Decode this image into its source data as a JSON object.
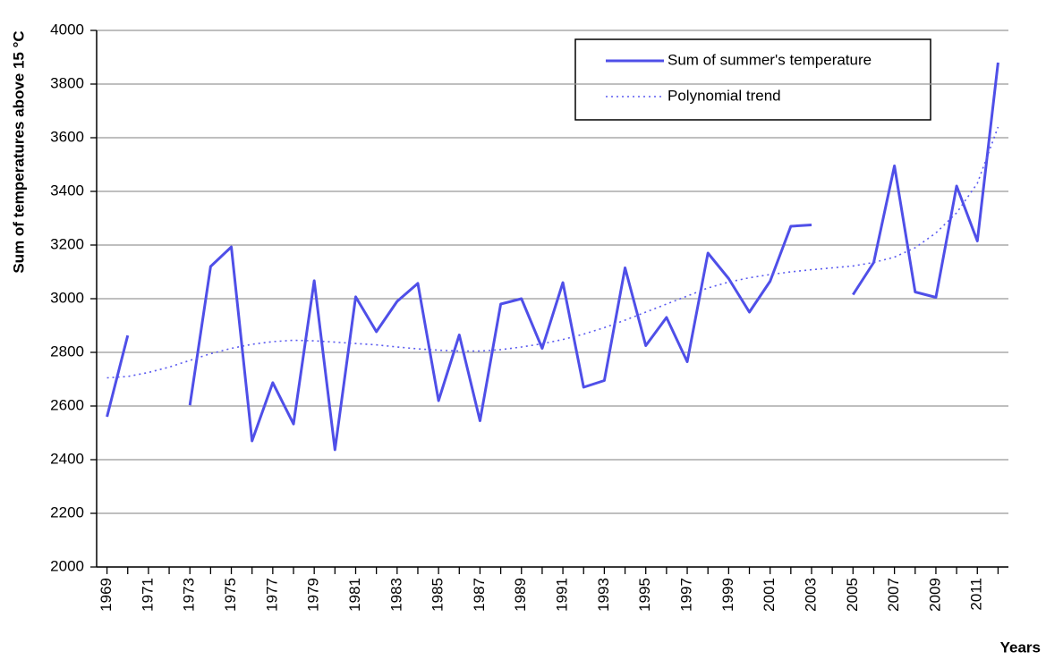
{
  "chart_data": {
    "type": "line",
    "y_label": "Sum of temperatures above 15 °C",
    "x_label": "Years",
    "x": [
      1969,
      1970,
      1971,
      1972,
      1973,
      1974,
      1975,
      1976,
      1977,
      1978,
      1979,
      1980,
      1981,
      1982,
      1983,
      1984,
      1985,
      1986,
      1987,
      1988,
      1989,
      1990,
      1991,
      1992,
      1993,
      1994,
      1995,
      1996,
      1997,
      1998,
      1999,
      2000,
      2001,
      2002,
      2003,
      2004,
      2005,
      2006,
      2007,
      2008,
      2009,
      2010,
      2011,
      2012
    ],
    "series": [
      {
        "name": "Sum of summer's temperature",
        "color": "#4f4fe8",
        "style": "solid",
        "values": [
          2560,
          2863,
          null,
          null,
          2603,
          3120,
          3193,
          2470,
          2687,
          2533,
          3067,
          2437,
          3007,
          2877,
          2990,
          3057,
          2620,
          2865,
          2545,
          2980,
          3000,
          2815,
          3060,
          2670,
          2695,
          3115,
          2825,
          2930,
          2765,
          3170,
          3075,
          2950,
          3065,
          3270,
          3275,
          null,
          3015,
          3135,
          3495,
          3025,
          3005,
          3420,
          3215,
          3880
        ]
      },
      {
        "name": "Polynomial trend",
        "color": "#5a5af0",
        "style": "dotted",
        "values": [
          2705,
          2710,
          2725,
          2745,
          2770,
          2795,
          2815,
          2830,
          2840,
          2845,
          2843,
          2838,
          2833,
          2828,
          2820,
          2813,
          2808,
          2805,
          2805,
          2810,
          2820,
          2832,
          2848,
          2868,
          2892,
          2920,
          2950,
          2980,
          3010,
          3040,
          3062,
          3078,
          3090,
          3100,
          3108,
          3115,
          3122,
          3135,
          3155,
          3190,
          3245,
          3320,
          3430,
          3640
        ]
      }
    ],
    "xlim": [
      1968.5,
      2012.5
    ],
    "xticks": [
      1969,
      1971,
      1973,
      1975,
      1977,
      1979,
      1981,
      1983,
      1985,
      1987,
      1989,
      1991,
      1993,
      1995,
      1997,
      1999,
      2001,
      2003,
      2005,
      2007,
      2009,
      2011
    ],
    "ylim": [
      2000,
      4000
    ],
    "yticks": [
      2000,
      2200,
      2400,
      2600,
      2800,
      3000,
      3200,
      3400,
      3600,
      3800,
      4000
    ],
    "grid": true
  }
}
